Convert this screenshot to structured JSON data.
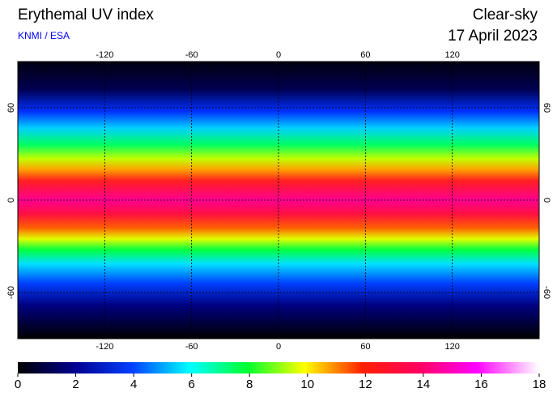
{
  "header": {
    "title": "Erythemal UV index",
    "source": "KNMI / ESA",
    "condition": "Clear-sky",
    "date": "17 April 2023"
  },
  "map": {
    "xlim": [
      -180,
      180
    ],
    "ylim": [
      -90,
      90
    ],
    "xticks": [
      -120,
      -60,
      0,
      60,
      120
    ],
    "yticks": [
      -60,
      0,
      60
    ]
  },
  "colorbar": {
    "lim": [
      0,
      18
    ],
    "ticks": [
      0,
      2,
      4,
      6,
      8,
      10,
      12,
      14,
      16,
      18
    ]
  }
}
